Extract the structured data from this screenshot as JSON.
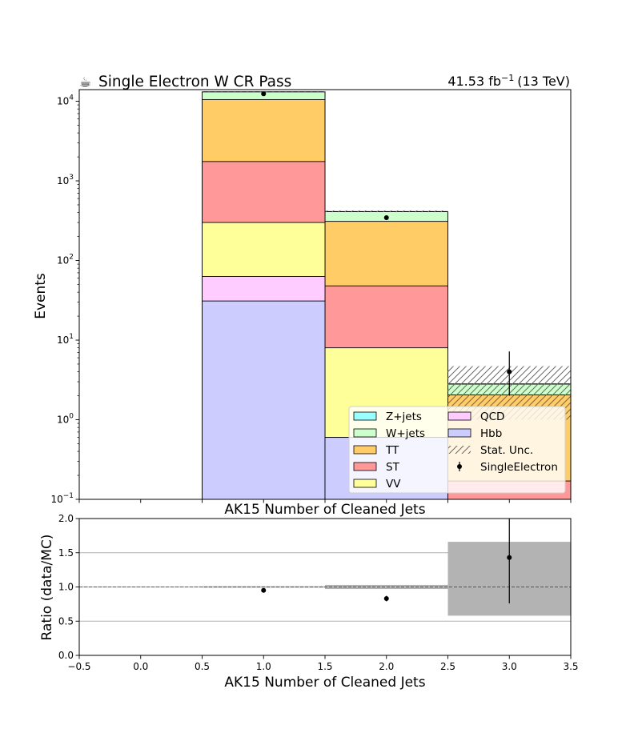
{
  "header": {
    "title_icon": "coffee-icon",
    "title_glyph": "☕",
    "title": "Single Electron W CR Pass",
    "lumi_value": "41.53 fb",
    "lumi_exp": "−1",
    "lumi_energy": "(13 TeV)"
  },
  "chart_data": [
    {
      "type": "bar",
      "stacked": true,
      "title": "Single Electron W CR Pass",
      "xlabel": "AK15 Number of Cleaned Jets",
      "ylabel": "Events",
      "yscale": "log",
      "xlim": [
        -0.5,
        3.5
      ],
      "ylim": [
        0.1,
        14000
      ],
      "y_ticks": [
        {
          "value": 0.1,
          "base": "10",
          "exp": "−1"
        },
        {
          "value": 1,
          "base": "10",
          "exp": "0"
        },
        {
          "value": 10,
          "base": "10",
          "exp": "1"
        },
        {
          "value": 100,
          "base": "10",
          "exp": "2"
        },
        {
          "value": 1000,
          "base": "10",
          "exp": "3"
        },
        {
          "value": 10000,
          "base": "10",
          "exp": "4"
        }
      ],
      "bins": [
        [
          0.5,
          1.5
        ],
        [
          1.5,
          2.5
        ],
        [
          2.5,
          3.5
        ]
      ],
      "stack_series": [
        {
          "name": "Hbb",
          "color": "#ccccff",
          "values": [
            31,
            0.6,
            0.1
          ]
        },
        {
          "name": "QCD",
          "color": "#ffccff",
          "values": [
            63,
            0.6,
            0.1
          ]
        },
        {
          "name": "VV",
          "color": "#ffff99",
          "values": [
            300,
            8,
            0.1
          ]
        },
        {
          "name": "ST",
          "color": "#ff9999",
          "values": [
            1750,
            48,
            0.17
          ]
        },
        {
          "name": "TT",
          "color": "#ffcc66",
          "values": [
            10500,
            310,
            2.05
          ]
        },
        {
          "name": "W+jets",
          "color": "#ccffcc",
          "values": [
            13100,
            410,
            2.8
          ]
        },
        {
          "name": "Z+jets",
          "color": "#99ffff",
          "values": [
            13150,
            412,
            2.82
          ]
        }
      ],
      "stat_unc": [
        [
          13050,
          13250
        ],
        [
          405,
          425
        ],
        [
          1.0,
          4.7
        ]
      ],
      "data": {
        "name": "SingleElectron",
        "x": [
          1,
          2,
          3
        ],
        "y": [
          12400,
          345,
          4
        ],
        "yerr_low": [
          110,
          19,
          2
        ],
        "yerr_high": [
          110,
          19,
          3.2
        ]
      },
      "legend": {
        "placement": "lower-right",
        "entries": [
          "Z+jets",
          "W+jets",
          "TT",
          "ST",
          "VV",
          "QCD",
          "Hbb",
          "Stat. Unc.",
          "SingleElectron"
        ]
      }
    },
    {
      "type": "scatter",
      "xlabel": "AK15 Number of Cleaned Jets",
      "ylabel": "Ratio (data/MC)",
      "xlim": [
        -0.5,
        3.5
      ],
      "ylim": [
        0.0,
        2.0
      ],
      "x_ticks": [
        "−0.5",
        "0.0",
        "0.5",
        "1.0",
        "1.5",
        "2.0",
        "2.5",
        "3.0",
        "3.5"
      ],
      "x_tick_values": [
        -0.5,
        0.0,
        0.5,
        1.0,
        1.5,
        2.0,
        2.5,
        3.0,
        3.5
      ],
      "y_ticks": [
        "0.0",
        "0.5",
        "1.0",
        "1.5",
        "2.0"
      ],
      "y_tick_values": [
        0.0,
        0.5,
        1.0,
        1.5,
        2.0
      ],
      "grid": "y",
      "reference_line": 1.0,
      "unc_band": [
        [
          0.99,
          1.01
        ],
        [
          0.97,
          1.03
        ],
        [
          0.58,
          1.66
        ]
      ],
      "x": [
        1,
        2,
        3
      ],
      "y": [
        0.95,
        0.83,
        1.43
      ],
      "yerr_low": [
        0.01,
        0.04,
        0.67
      ],
      "yerr_high": [
        0.01,
        0.04,
        0.7
      ]
    }
  ]
}
